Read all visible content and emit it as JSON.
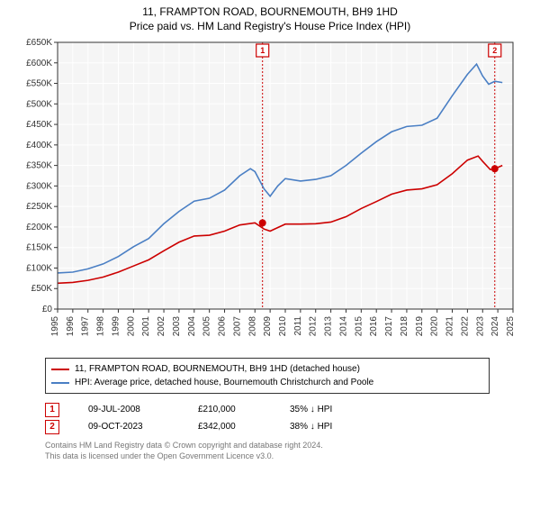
{
  "title_line1": "11, FRAMPTON ROAD, BOURNEMOUTH, BH9 1HD",
  "title_line2": "Price paid vs. HM Land Registry's House Price Index (HPI)",
  "chart": {
    "type": "line",
    "background_color": "#f5f5f5",
    "grid_color": "#ffffff",
    "outer_border_color": "#333333",
    "x_years": [
      1995,
      1996,
      1997,
      1998,
      1999,
      2000,
      2001,
      2002,
      2003,
      2004,
      2005,
      2006,
      2007,
      2008,
      2009,
      2010,
      2011,
      2012,
      2013,
      2014,
      2015,
      2016,
      2017,
      2018,
      2019,
      2020,
      2021,
      2022,
      2023,
      2024,
      2025
    ],
    "xlim": [
      1995,
      2025
    ],
    "ylim": [
      0,
      650000
    ],
    "ytick_step": 50000,
    "ytick_labels": [
      "£0",
      "£50K",
      "£100K",
      "£150K",
      "£200K",
      "£250K",
      "£300K",
      "£350K",
      "£400K",
      "£450K",
      "£500K",
      "£550K",
      "£600K",
      "£650K"
    ],
    "line_width": 1.6,
    "tick_fontsize": 10,
    "series": [
      {
        "name": "property",
        "color": "#cc0000",
        "label": "11, FRAMPTON ROAD, BOURNEMOUTH, BH9 1HD (detached house)",
        "points": [
          [
            1995,
            63000
          ],
          [
            1996,
            65000
          ],
          [
            1997,
            70000
          ],
          [
            1998,
            78000
          ],
          [
            1999,
            90000
          ],
          [
            2000,
            105000
          ],
          [
            2001,
            120000
          ],
          [
            2002,
            142000
          ],
          [
            2003,
            163000
          ],
          [
            2004,
            178000
          ],
          [
            2005,
            180000
          ],
          [
            2006,
            190000
          ],
          [
            2007,
            205000
          ],
          [
            2008,
            210000
          ],
          [
            2008.6,
            195000
          ],
          [
            2009,
            190000
          ],
          [
            2010,
            207000
          ],
          [
            2011,
            207000
          ],
          [
            2012,
            208000
          ],
          [
            2013,
            212000
          ],
          [
            2014,
            225000
          ],
          [
            2015,
            245000
          ],
          [
            2016,
            262000
          ],
          [
            2017,
            280000
          ],
          [
            2018,
            290000
          ],
          [
            2019,
            293000
          ],
          [
            2020,
            303000
          ],
          [
            2021,
            330000
          ],
          [
            2022,
            363000
          ],
          [
            2022.7,
            373000
          ],
          [
            2023,
            360000
          ],
          [
            2023.5,
            340000
          ],
          [
            2023.8,
            342000
          ],
          [
            2024.3,
            350000
          ]
        ]
      },
      {
        "name": "hpi",
        "color": "#4a7fc4",
        "label": "HPI: Average price, detached house, Bournemouth Christchurch and Poole",
        "points": [
          [
            1995,
            88000
          ],
          [
            1996,
            90000
          ],
          [
            1997,
            98000
          ],
          [
            1998,
            110000
          ],
          [
            1999,
            128000
          ],
          [
            2000,
            152000
          ],
          [
            2001,
            172000
          ],
          [
            2002,
            208000
          ],
          [
            2003,
            238000
          ],
          [
            2004,
            263000
          ],
          [
            2005,
            270000
          ],
          [
            2006,
            290000
          ],
          [
            2007,
            325000
          ],
          [
            2007.7,
            342000
          ],
          [
            2008,
            335000
          ],
          [
            2008.6,
            293000
          ],
          [
            2009,
            275000
          ],
          [
            2009.5,
            300000
          ],
          [
            2010,
            318000
          ],
          [
            2011,
            312000
          ],
          [
            2012,
            316000
          ],
          [
            2013,
            325000
          ],
          [
            2014,
            350000
          ],
          [
            2015,
            380000
          ],
          [
            2016,
            408000
          ],
          [
            2017,
            432000
          ],
          [
            2018,
            445000
          ],
          [
            2019,
            448000
          ],
          [
            2020,
            465000
          ],
          [
            2021,
            520000
          ],
          [
            2022,
            572000
          ],
          [
            2022.6,
            597000
          ],
          [
            2023,
            568000
          ],
          [
            2023.4,
            548000
          ],
          [
            2023.8,
            555000
          ],
          [
            2024.3,
            552000
          ]
        ]
      }
    ],
    "sale_markers": [
      {
        "n": "1",
        "year": 2008.5,
        "price": 210000,
        "color": "#cc0000"
      },
      {
        "n": "2",
        "year": 2023.8,
        "price": 342000,
        "color": "#cc0000"
      }
    ],
    "sale_dash_color": "#cc0000"
  },
  "sales": [
    {
      "n": "1",
      "date": "09-JUL-2008",
      "price": "£210,000",
      "delta_pct": "35%",
      "arrow": "↓",
      "delta_label": "HPI"
    },
    {
      "n": "2",
      "date": "09-OCT-2023",
      "price": "£342,000",
      "delta_pct": "38%",
      "arrow": "↓",
      "delta_label": "HPI"
    }
  ],
  "footnote_line1": "Contains HM Land Registry data © Crown copyright and database right 2024.",
  "footnote_line2": "This data is licensed under the Open Government Licence v3.0.",
  "marker_box_color": "#cc0000"
}
